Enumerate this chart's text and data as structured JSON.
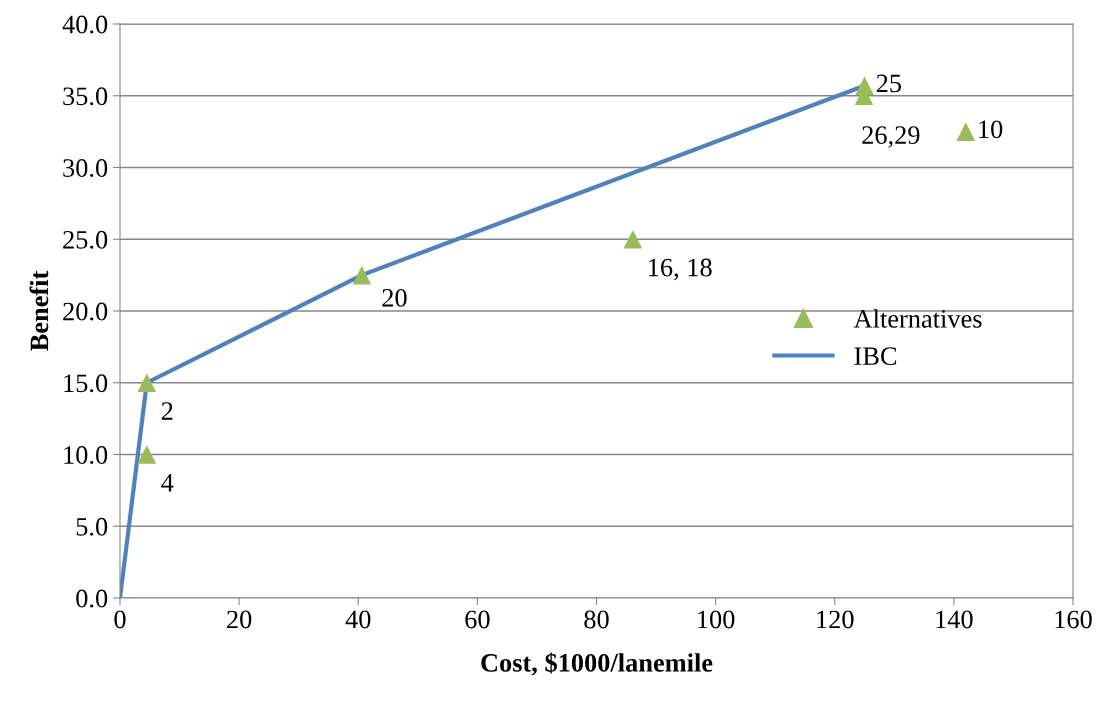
{
  "chart_data": {
    "type": "scatter",
    "xlabel": "Cost, $1000/lanemile",
    "ylabel": "Benefit",
    "series": [
      {
        "name": "Alternatives",
        "color": "#9bbb59",
        "marker": "triangle",
        "x": [
          4.5,
          4.5,
          40.6,
          86.1,
          124.9,
          125,
          142
        ],
        "values": [
          15.0,
          10.0,
          22.5,
          25.0,
          35.0,
          35.7,
          32.5
        ]
      },
      {
        "name": "IBC",
        "type": "line",
        "color": "#4f81bd",
        "marker": "none",
        "line_style": "solid",
        "x": [
          0,
          4.5,
          40.6,
          125
        ],
        "values": [
          0,
          15.0,
          22.5,
          35.7
        ]
      }
    ],
    "annotations": [
      {
        "text": "2",
        "x": 4.5,
        "y": 15.0
      },
      {
        "text": "4",
        "x": 4.5,
        "y": 10.0
      },
      {
        "text": "20",
        "x": 40.6,
        "y": 22.5
      },
      {
        "text": "16, 18",
        "x": 86.1,
        "y": 25.0
      },
      {
        "text": "26,29",
        "x": 124.9,
        "y": 35.0
      },
      {
        "text": "25",
        "x": 125,
        "y": 35.7
      },
      {
        "text": "10",
        "x": 142,
        "y": 32.5
      }
    ],
    "xlim": [
      0,
      160
    ],
    "xticks": [
      0,
      20,
      40,
      60,
      80,
      100,
      120,
      140,
      160
    ],
    "ylim": [
      0,
      40
    ],
    "yticks": [
      {
        "value": 0,
        "label": "0.0"
      },
      {
        "value": 5,
        "label": "5.0"
      },
      {
        "value": 10,
        "label": "10.0"
      },
      {
        "value": 15,
        "label": "15.0"
      },
      {
        "value": 20,
        "label": "20.0"
      },
      {
        "value": 25,
        "label": "25.0"
      },
      {
        "value": 30,
        "label": "30.0"
      },
      {
        "value": 35,
        "label": "35.0"
      },
      {
        "value": 40,
        "label": "40.0"
      }
    ],
    "grid": "y",
    "legend": "right"
  }
}
